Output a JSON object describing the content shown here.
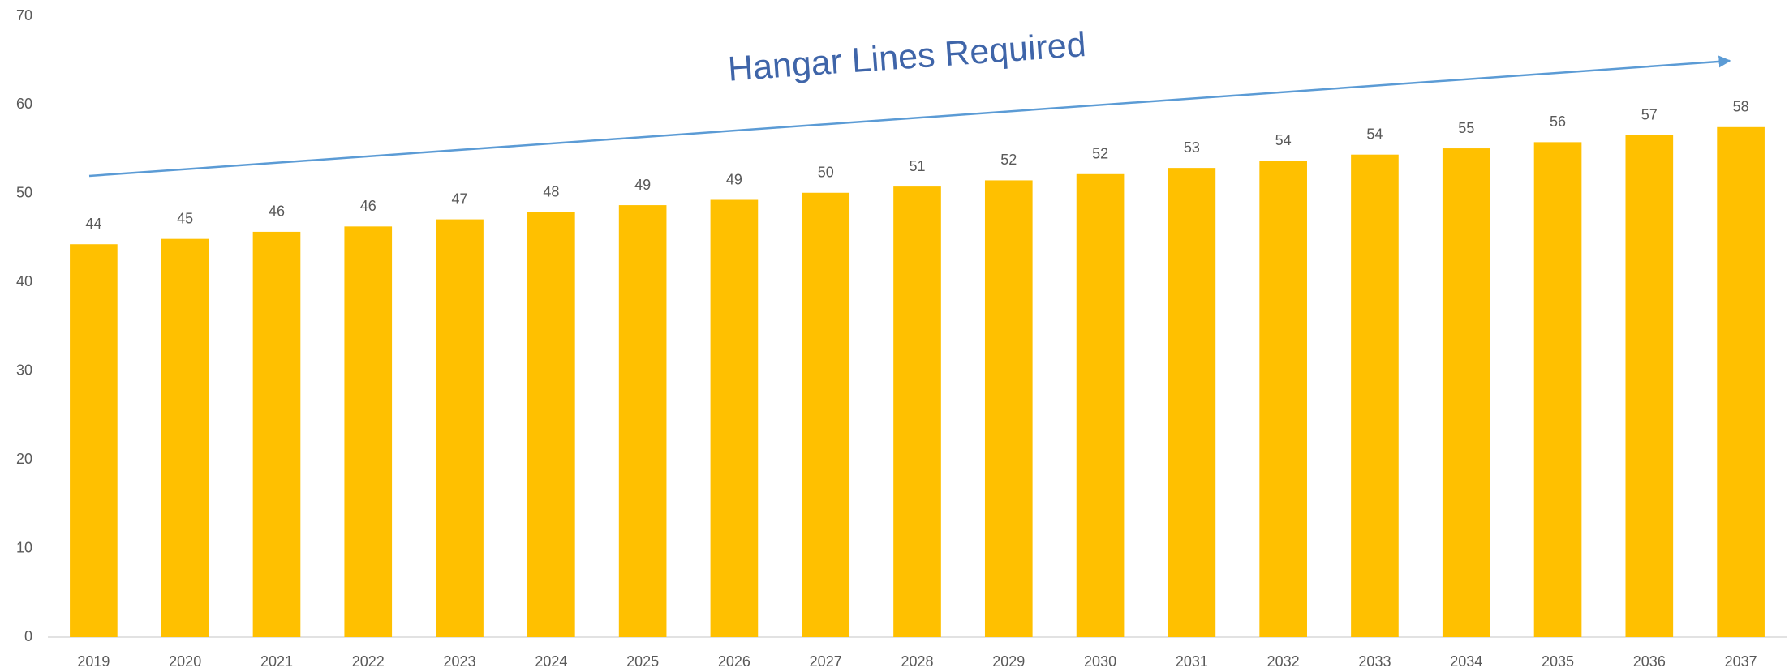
{
  "chart_data": {
    "type": "bar",
    "annotation": "Hangar Lines Required",
    "categories": [
      "2019",
      "2020",
      "2021",
      "2022",
      "2023",
      "2024",
      "2025",
      "2026",
      "2027",
      "2028",
      "2029",
      "2030",
      "2031",
      "2032",
      "2033",
      "2034",
      "2035",
      "2036",
      "2037"
    ],
    "values": [
      44.3,
      44.9,
      45.7,
      46.3,
      47.1,
      47.9,
      48.7,
      49.3,
      50.1,
      50.8,
      51.5,
      52.2,
      52.9,
      53.7,
      54.4,
      55.1,
      55.8,
      56.6,
      57.5
    ],
    "value_labels": [
      "44",
      "45",
      "46",
      "46",
      "47",
      "48",
      "49",
      "49",
      "50",
      "51",
      "52",
      "52",
      "53",
      "54",
      "54",
      "55",
      "56",
      "57",
      "58"
    ],
    "color": "#ffc000",
    "ylim": [
      0,
      70
    ],
    "yticks": [
      0,
      10,
      20,
      30,
      40,
      50,
      60,
      70
    ],
    "grid": false
  }
}
